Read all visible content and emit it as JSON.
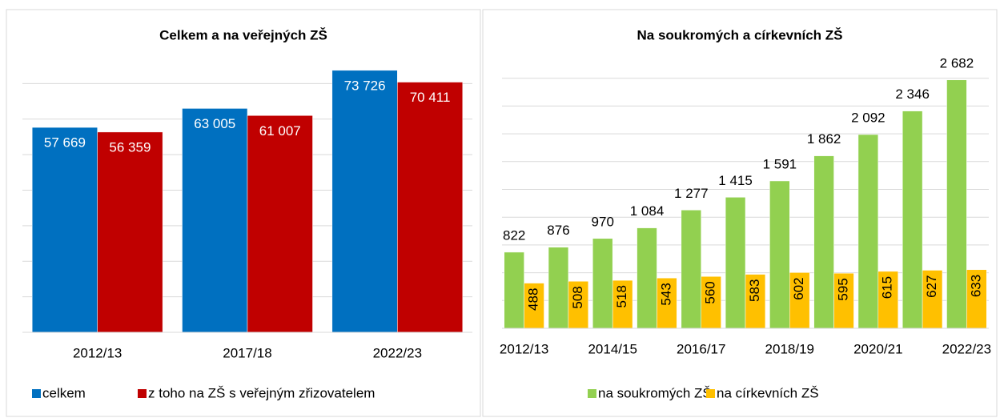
{
  "chart_data": [
    {
      "type": "bar",
      "title": "Celkem a na veřejných ZŠ",
      "categories": [
        "2012/13",
        "2017/18",
        "2022/23"
      ],
      "series": [
        {
          "name": "celkem",
          "color": "#0070c0",
          "values": [
            57669,
            63005,
            73726
          ],
          "value_labels": [
            "57 669",
            "63 005",
            "73 726"
          ]
        },
        {
          "name": "z toho na ZŠ s veřejným zřizovatelem",
          "color": "#c00000",
          "values": [
            56359,
            61007,
            70411
          ],
          "value_labels": [
            "56 359",
            "61 007",
            "70 411"
          ]
        }
      ],
      "ylim": [
        0,
        80000
      ],
      "yticks": [
        0,
        10000,
        20000,
        30000,
        40000,
        50000,
        60000,
        70000
      ],
      "grid": true,
      "legend": "bottom"
    },
    {
      "type": "bar",
      "title": "Na soukromých a církevních ZŠ",
      "categories": [
        "2012/13",
        null,
        "2014/15",
        null,
        "2016/17",
        null,
        "2018/19",
        null,
        "2020/21",
        null,
        "2022/23"
      ],
      "series": [
        {
          "name": "na soukromých ZŠ",
          "color": "#92d050",
          "values": [
            822,
            876,
            970,
            1084,
            1277,
            1415,
            1591,
            1862,
            2092,
            2346,
            2682
          ],
          "value_labels": [
            "822",
            "876",
            "970",
            "1 084",
            "1 277",
            "1 415",
            "1 591",
            "1 862",
            "2 092",
            "2 346",
            "2 682"
          ]
        },
        {
          "name": "na církevních ZŠ",
          "color": "#ffc000",
          "values": [
            488,
            508,
            518,
            543,
            560,
            583,
            602,
            595,
            615,
            627,
            633
          ]
        }
      ],
      "ylim": [
        0,
        3000
      ],
      "yticks": [
        0,
        300,
        600,
        900,
        1200,
        1500,
        1800,
        2100,
        2400,
        2700
      ],
      "grid": true,
      "legend": "bottom"
    }
  ]
}
